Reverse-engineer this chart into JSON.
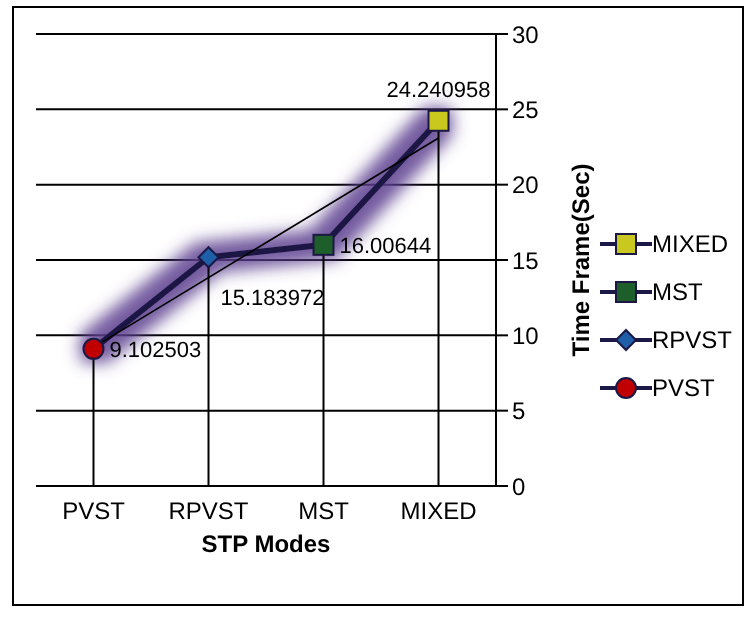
{
  "chart_data": {
    "type": "line",
    "xlabel": "STP Modes",
    "ylabel": "Time Frame(Sec)",
    "categories": [
      "PVST",
      "RPVST",
      "MST",
      "MIXED"
    ],
    "ylim": [
      0,
      30
    ],
    "yticks": [
      0,
      5,
      10,
      15,
      20,
      25,
      30
    ],
    "grid": "y",
    "legend": "right",
    "series": [
      {
        "color": "#1c1845",
        "values": [
          9.102503,
          15.183972,
          16.00644,
          24.240958
        ],
        "value_labels": [
          "9.102503",
          "15.183972",
          "16.00644",
          "24.240958"
        ]
      },
      {
        "color": "#000000",
        "values": [
          9.2,
          null,
          null,
          23.1
        ]
      },
      {
        "name": "MIXED",
        "color": "#c8c81e",
        "marker": "square",
        "values": [
          null,
          null,
          null,
          24.240958
        ]
      },
      {
        "name": "MST",
        "color": "#1d5e2a",
        "marker": "square",
        "values": [
          null,
          null,
          16.00644,
          null
        ]
      },
      {
        "name": "RPVST",
        "color": "#1f5fa8",
        "marker": "diamond",
        "values": [
          null,
          15.183972,
          null,
          null
        ]
      },
      {
        "name": "PVST",
        "color": "#c00000",
        "marker": "circle",
        "values": [
          9.102503,
          null,
          null,
          null
        ]
      }
    ]
  }
}
